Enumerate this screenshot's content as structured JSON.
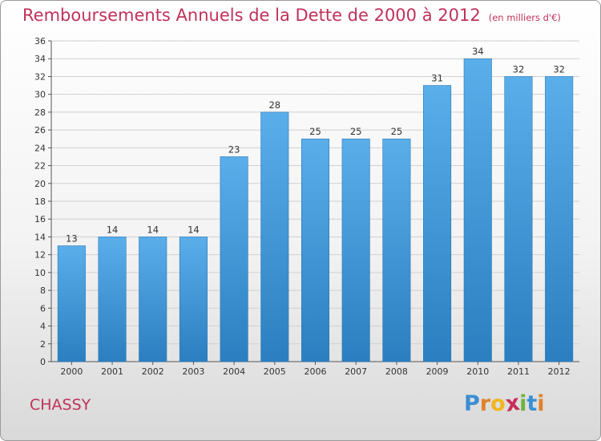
{
  "title": "Remboursements Annuels de la Dette de 2000 à 2012",
  "subtitle": "(en milliers d'€)",
  "commune": "CHASSY",
  "logo": {
    "letters": [
      "P",
      "r",
      "o",
      "x",
      "i",
      "t",
      "i"
    ],
    "colors": [
      "#3b8fd4",
      "#e0822a",
      "#f2b51c",
      "#c72f5a",
      "#6cb33f",
      "#3b8fd4",
      "#e0822a"
    ]
  },
  "colors": {
    "bar_top": "#5aaeea",
    "bar_bottom": "#2b7fc0",
    "text": "#c1315a"
  },
  "chart_data": {
    "type": "bar",
    "categories": [
      "2000",
      "2001",
      "2002",
      "2003",
      "2004",
      "2005",
      "2006",
      "2007",
      "2008",
      "2009",
      "2010",
      "2011",
      "2012"
    ],
    "values": [
      13,
      14,
      14,
      14,
      23,
      28,
      25,
      25,
      25,
      31,
      34,
      32,
      32
    ],
    "ylim": [
      0,
      36
    ],
    "yticks": [
      "0",
      "2",
      "4",
      "6",
      "8",
      "10",
      "12",
      "14",
      "16",
      "18",
      "20",
      "22",
      "24",
      "26",
      "28",
      "30",
      "32",
      "34",
      "36"
    ],
    "grid": true
  }
}
